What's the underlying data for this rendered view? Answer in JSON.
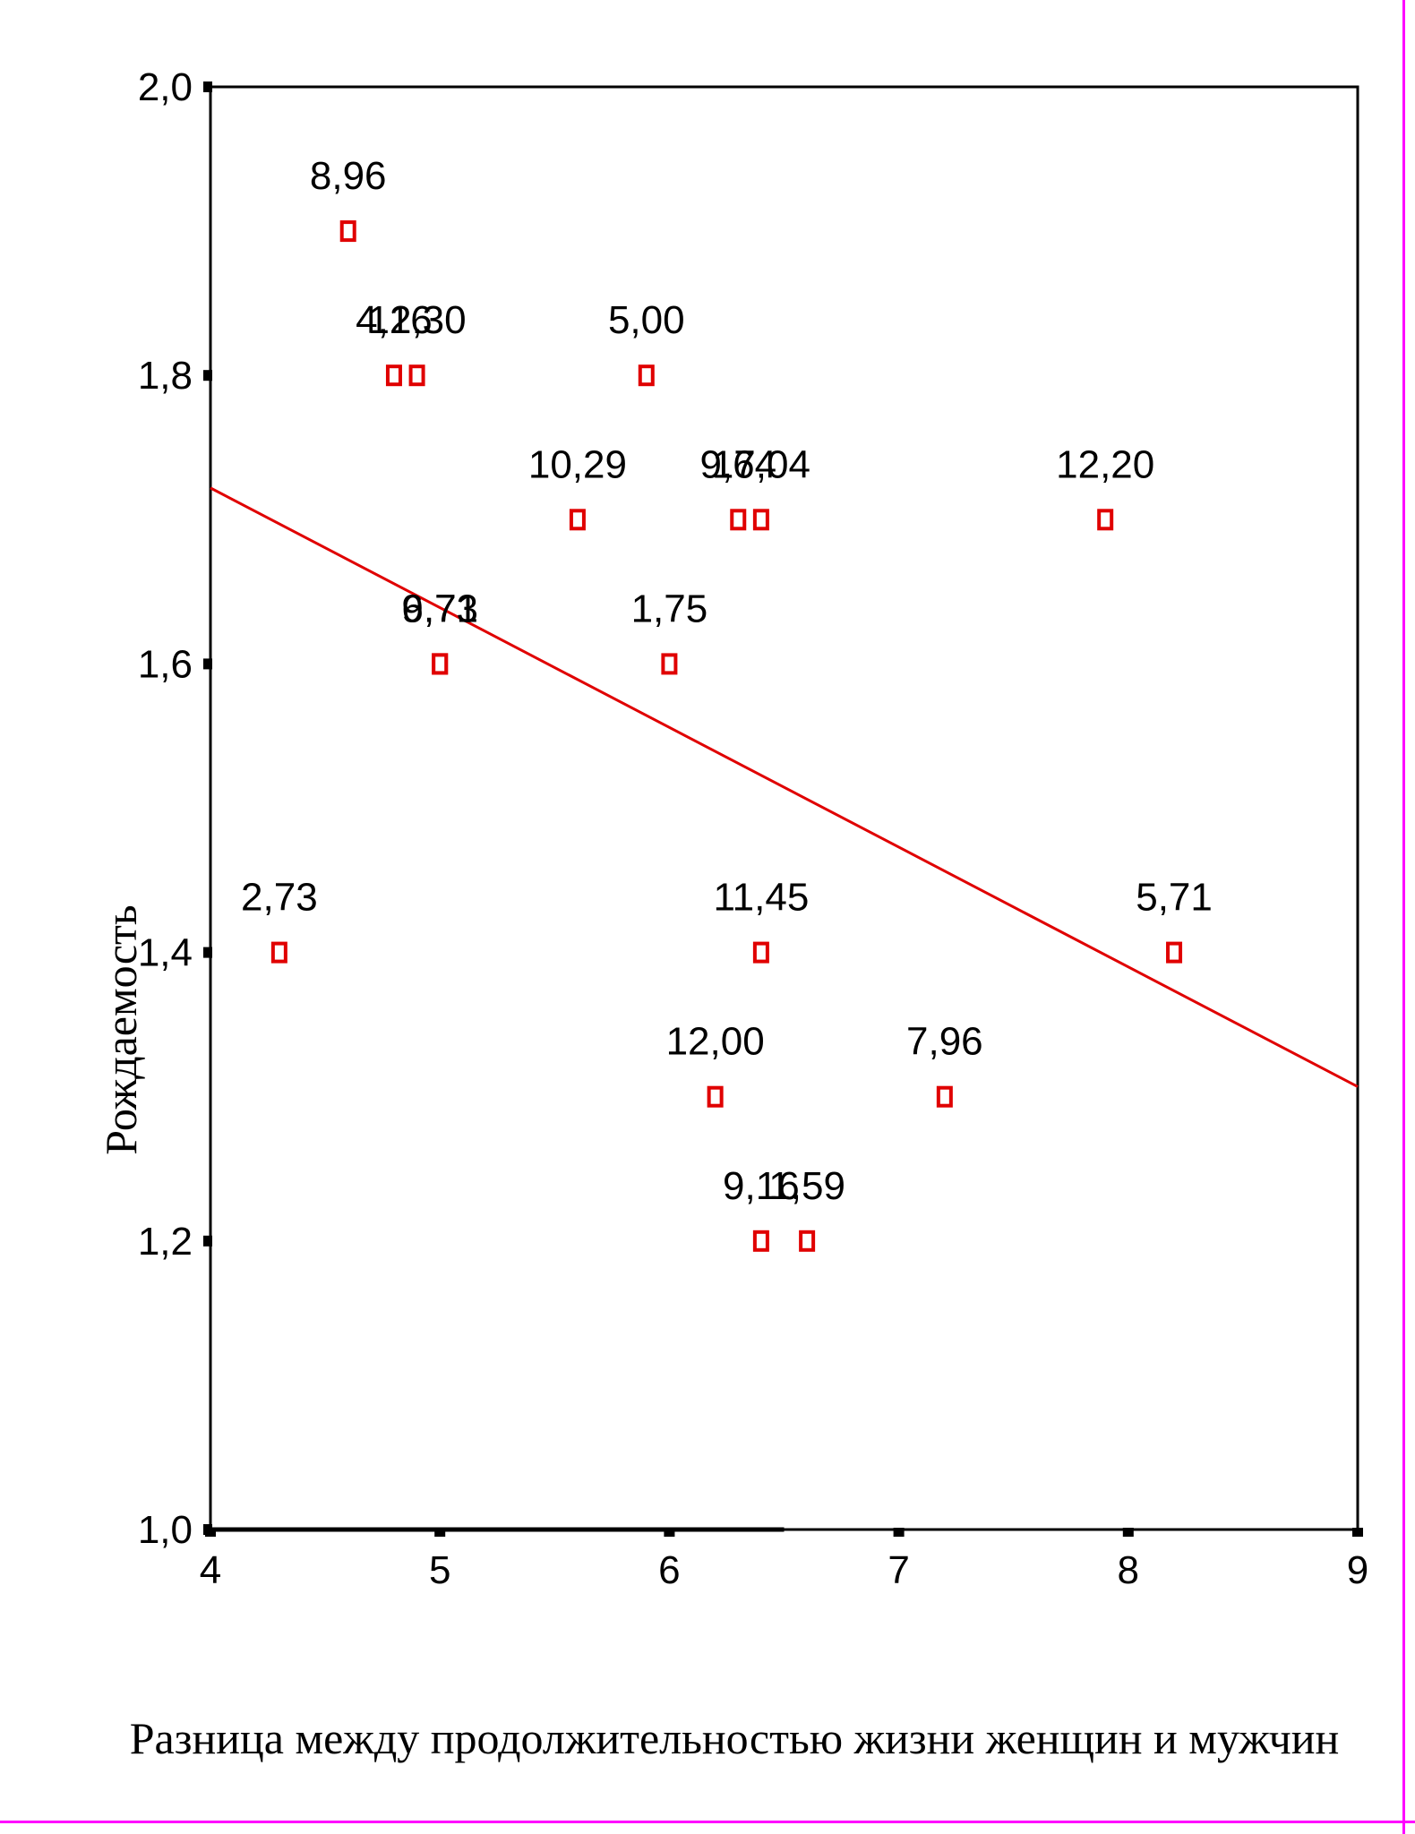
{
  "colors": {
    "frame": "#ff00ff",
    "marker": "#e00000",
    "trendline": "#e00000",
    "axis": "#000000",
    "text": "#000000"
  },
  "chart_data": {
    "type": "scatter",
    "title": "",
    "xlabel": "Разница между продолжительностью жизни женщин и мужчин",
    "ylabel": "Рождаемость",
    "xlim": [
      4,
      9
    ],
    "ylim": [
      1.0,
      2.0
    ],
    "x_ticks": [
      "4",
      "5",
      "6",
      "7",
      "8",
      "9"
    ],
    "y_ticks": [
      "1,0",
      "1,2",
      "1,4",
      "1,6",
      "1,8",
      "2,0"
    ],
    "grid": false,
    "legend": "none",
    "marker": "open-square",
    "points": [
      {
        "x": 4.6,
        "y": 1.9,
        "label": "8,96"
      },
      {
        "x": 4.8,
        "y": 1.8,
        "label": "4,16"
      },
      {
        "x": 4.9,
        "y": 1.8,
        "label": "12,30"
      },
      {
        "x": 5.9,
        "y": 1.8,
        "label": "5,00"
      },
      {
        "x": 5.6,
        "y": 1.7,
        "label": "10,29"
      },
      {
        "x": 6.3,
        "y": 1.7,
        "label": "9,64"
      },
      {
        "x": 6.4,
        "y": 1.7,
        "label": "17,04"
      },
      {
        "x": 7.9,
        "y": 1.7,
        "label": "12,20"
      },
      {
        "x": 5.0,
        "y": 1.6,
        "label": "6,71"
      },
      {
        "x": 5.0,
        "y": 1.6,
        "label": "9,73"
      },
      {
        "x": 6.0,
        "y": 1.6,
        "label": "1,75"
      },
      {
        "x": 4.3,
        "y": 1.4,
        "label": "2,73"
      },
      {
        "x": 6.4,
        "y": 1.4,
        "label": "11,45"
      },
      {
        "x": 8.2,
        "y": 1.4,
        "label": "5,71"
      },
      {
        "x": 6.2,
        "y": 1.3,
        "label": "12,00"
      },
      {
        "x": 7.2,
        "y": 1.3,
        "label": "7,96"
      },
      {
        "x": 6.4,
        "y": 1.2,
        "label": "9,16"
      },
      {
        "x": 6.6,
        "y": 1.2,
        "label": "1,59"
      }
    ],
    "trendline": {
      "type": "linear",
      "x": [
        4,
        9
      ],
      "y": [
        1.722,
        1.307
      ]
    }
  }
}
